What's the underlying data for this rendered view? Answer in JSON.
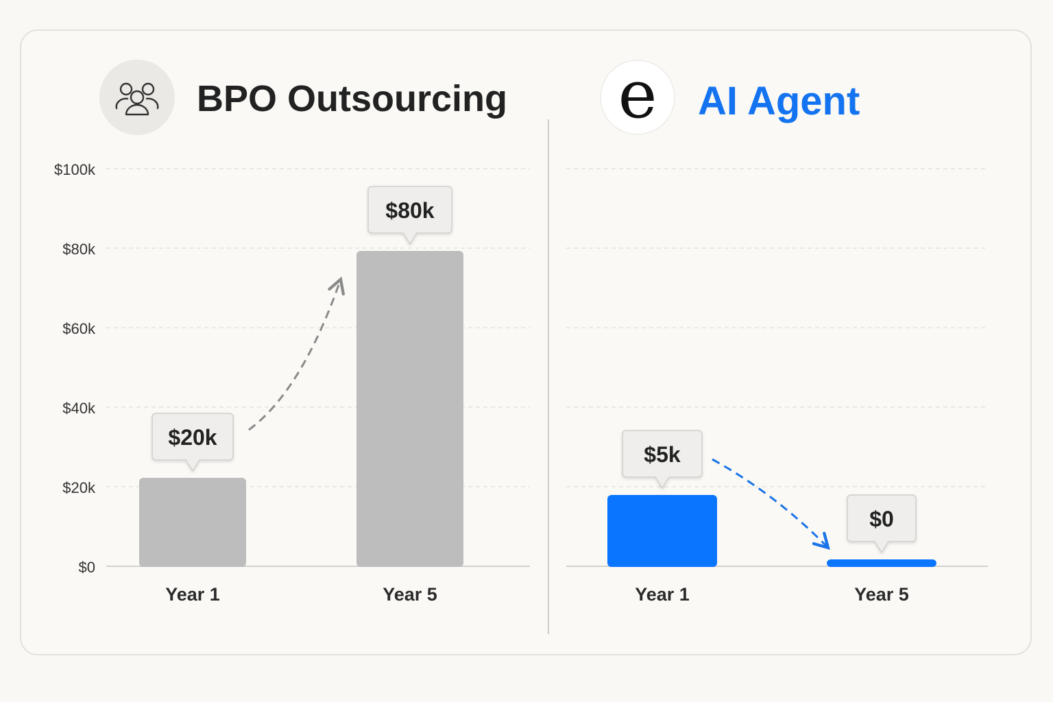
{
  "chart_data": [
    {
      "type": "bar",
      "title": "BPO Outsourcing",
      "icon": "people-group-icon",
      "categories": [
        "Year 1",
        "Year 5"
      ],
      "values": [
        20,
        80
      ],
      "value_labels": [
        "$20k",
        "$80k"
      ],
      "ylim": [
        0,
        100
      ],
      "yticks": [
        0,
        20,
        40,
        60,
        80,
        100
      ],
      "ytick_labels": [
        "$0",
        "$20k",
        "$40k",
        "$60k",
        "$80k",
        "$100k"
      ],
      "bar_color": "#bdbdbd",
      "title_color": "#222222",
      "trend": "up",
      "trend_color": "#8a8a8a",
      "grid": true
    },
    {
      "type": "bar",
      "title": "AI Agent",
      "icon": "letter-e-logo-icon",
      "logo_letter": "e",
      "categories": [
        "Year 1",
        "Year 5"
      ],
      "values": [
        5,
        0
      ],
      "value_labels": [
        "$5k",
        "$0"
      ],
      "ylim": [
        0,
        100
      ],
      "bar_color": "#0a75ff",
      "title_color": "#1473f0",
      "trend": "down",
      "trend_color": "#1a73e8",
      "grid": true
    }
  ]
}
